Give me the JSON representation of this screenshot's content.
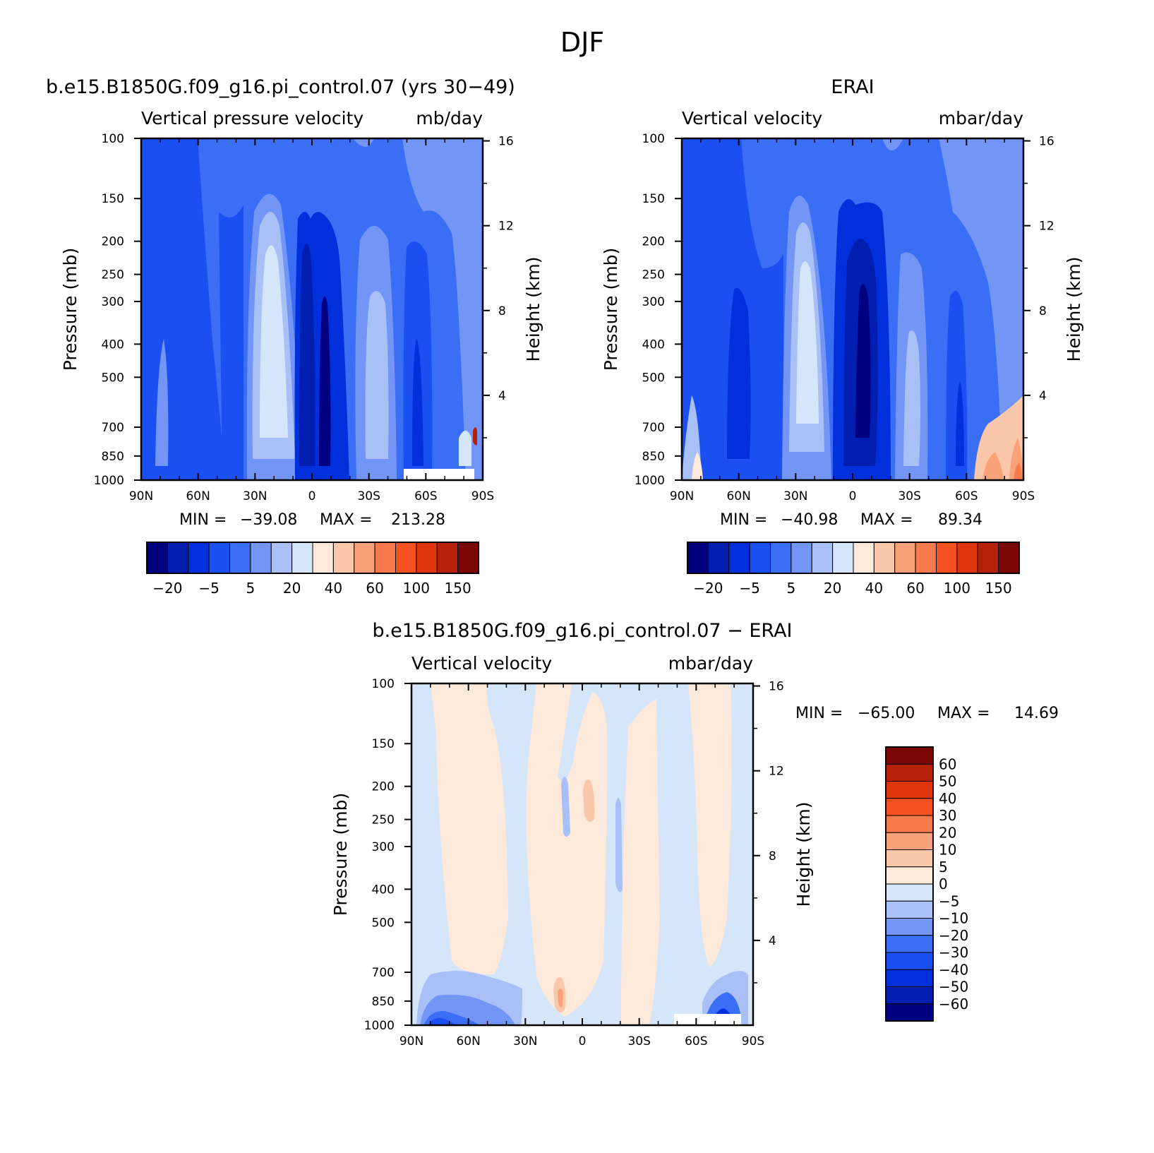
{
  "figure": {
    "title": "DJF"
  },
  "chart_data": [
    {
      "type": "heatmap",
      "title": "b.e15.B1850G.f09_g16.pi_control.07 (yrs 30−49)",
      "left_label": "Vertical pressure velocity",
      "right_label": "mb/day",
      "ylabel": "Pressure (mb)",
      "y2label": "Height (km)",
      "x_ticks": [
        "90N",
        "60N",
        "30N",
        "0",
        "30S",
        "60S",
        "90S"
      ],
      "y_ticks": [
        "100",
        "150",
        "200",
        "250",
        "300",
        "400",
        "500",
        "700",
        "850",
        "1000"
      ],
      "y2_ticks": [
        "16",
        "12",
        "8",
        "4"
      ],
      "xlim": [
        90,
        -90
      ],
      "ylim": [
        1000,
        100
      ],
      "y_log_scale": true,
      "stats": {
        "min_label": "MIN =",
        "min": "−39.08",
        "max_label": "MAX =",
        "max": "213.28"
      },
      "colorbar": {
        "orientation": "horizontal",
        "colors": [
          "#000080",
          "#001fb0",
          "#0030dc",
          "#1a4ff2",
          "#3a6ef5",
          "#7395f5",
          "#a9c0f7",
          "#d6e6fa",
          "#fde9d9",
          "#fbc7ab",
          "#f9a27a",
          "#f77a4c",
          "#f5501f",
          "#e03508",
          "#b42106",
          "#7b0707"
        ],
        "labels": [
          "−20",
          "−5",
          "5",
          "20",
          "40",
          "60",
          "100",
          "150"
        ]
      }
    },
    {
      "type": "heatmap",
      "title": "ERAI",
      "left_label": "Vertical velocity",
      "right_label": "mbar/day",
      "ylabel": "Pressure (mb)",
      "y2label": "Height (km)",
      "x_ticks": [
        "90N",
        "60N",
        "30N",
        "0",
        "30S",
        "60S",
        "90S"
      ],
      "y_ticks": [
        "100",
        "150",
        "200",
        "250",
        "300",
        "400",
        "500",
        "700",
        "850",
        "1000"
      ],
      "y2_ticks": [
        "16",
        "12",
        "8",
        "4"
      ],
      "xlim": [
        90,
        -90
      ],
      "ylim": [
        1000,
        100
      ],
      "y_log_scale": true,
      "stats": {
        "min_label": "MIN =",
        "min": "−40.98",
        "max_label": "MAX =",
        "max": "89.34"
      },
      "colorbar": {
        "orientation": "horizontal",
        "colors": [
          "#000080",
          "#001fb0",
          "#0030dc",
          "#1a4ff2",
          "#3a6ef5",
          "#7395f5",
          "#a9c0f7",
          "#d6e6fa",
          "#fde9d9",
          "#fbc7ab",
          "#f9a27a",
          "#f77a4c",
          "#f5501f",
          "#e03508",
          "#b42106",
          "#7b0707"
        ],
        "labels": [
          "−20",
          "−5",
          "5",
          "20",
          "40",
          "60",
          "100",
          "150"
        ]
      }
    },
    {
      "type": "heatmap",
      "title": "b.e15.B1850G.f09_g16.pi_control.07 − ERAI",
      "left_label": "Vertical velocity",
      "right_label": "mbar/day",
      "ylabel": "Pressure (mb)",
      "y2label": "Height (km)",
      "x_ticks": [
        "90N",
        "60N",
        "30N",
        "0",
        "30S",
        "60S",
        "90S"
      ],
      "y_ticks": [
        "100",
        "150",
        "200",
        "250",
        "300",
        "400",
        "500",
        "700",
        "850",
        "1000"
      ],
      "y2_ticks": [
        "16",
        "12",
        "8",
        "4"
      ],
      "xlim": [
        90,
        -90
      ],
      "ylim": [
        1000,
        100
      ],
      "y_log_scale": true,
      "stats": {
        "min_label": "MIN =",
        "min": "−65.00",
        "max_label": "MAX =",
        "max": "14.69"
      },
      "colorbar": {
        "orientation": "vertical",
        "colors": [
          "#7b0707",
          "#b42106",
          "#e03508",
          "#f5501f",
          "#f77a4c",
          "#f9a27a",
          "#fbc7ab",
          "#fde9d9",
          "#d6e6fa",
          "#a9c0f7",
          "#7395f5",
          "#3a6ef5",
          "#1a4ff2",
          "#0030dc",
          "#001fb0",
          "#000080"
        ],
        "labels": [
          "60",
          "50",
          "40",
          "30",
          "20",
          "10",
          "5",
          "0",
          "−5",
          "−10",
          "−20",
          "−30",
          "−40",
          "−50",
          "−60"
        ]
      }
    }
  ]
}
